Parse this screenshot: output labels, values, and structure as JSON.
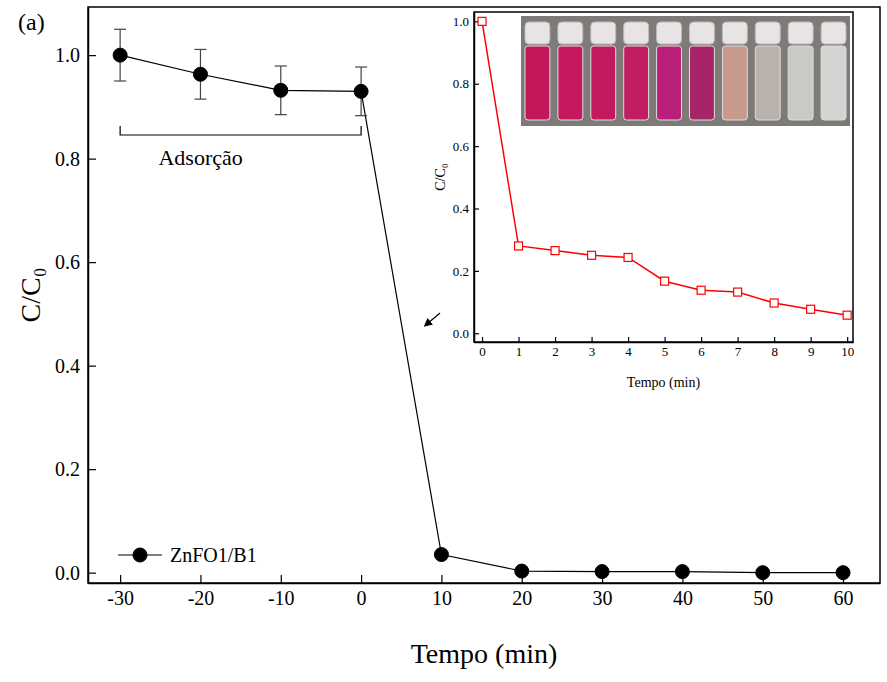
{
  "chart_data": [
    {
      "type": "line",
      "panel_label": "(a)",
      "x_label": "Tempo (min)",
      "y_label": "C/C₀",
      "x": [
        -30,
        -20,
        -10,
        0,
        10,
        20,
        30,
        40,
        50,
        60
      ],
      "series": [
        {
          "name": "ZnFO1/B1",
          "color": "#000000",
          "marker": "circle",
          "values": [
            1.0,
            0.963,
            0.932,
            0.93,
            0.035,
            0.003,
            0.002,
            0.002,
            0.0,
            0.0
          ],
          "errors": [
            0.05,
            0.048,
            0.047,
            0.047,
            null,
            null,
            null,
            null,
            null,
            null
          ]
        }
      ],
      "xlim": [
        -34,
        64.6
      ],
      "ylim": [
        -0.02,
        1.093
      ],
      "xticks": [
        -30,
        -20,
        -10,
        0,
        10,
        20,
        30,
        40,
        50,
        60
      ],
      "yticks": [
        {
          "value": 0,
          "label": "0.0"
        },
        {
          "value": 0.2,
          "label": "0.2"
        },
        {
          "value": 0.4,
          "label": "0.4"
        },
        {
          "value": 0.6,
          "label": "0.6"
        },
        {
          "value": 0.8,
          "label": "0.8"
        },
        {
          "value": 1,
          "label": "1.0"
        }
      ],
      "legend": "lower left",
      "annotations": [
        {
          "text": "Adsorção",
          "x": [
            -30,
            0
          ]
        }
      ]
    },
    {
      "type": "line",
      "x_label": "Tempo (min)",
      "y_label": "C/C₀",
      "x": [
        0,
        1,
        2,
        3,
        4,
        5,
        6,
        7,
        8,
        9,
        10
      ],
      "series": [
        {
          "color": "#ff0000",
          "marker": "square",
          "values": [
            1.0,
            0.28,
            0.265,
            0.25,
            0.243,
            0.167,
            0.138,
            0.132,
            0.097,
            0.077,
            0.058
          ]
        }
      ],
      "xlim": [
        -0.22,
        10.16
      ],
      "ylim": [
        -0.028,
        1.03
      ],
      "xticks": [
        0,
        1,
        2,
        3,
        4,
        5,
        6,
        7,
        8,
        9,
        10
      ],
      "yticks": [
        {
          "value": 0,
          "label": "0.0"
        },
        {
          "value": 0.2,
          "label": "0.2"
        },
        {
          "value": 0.4,
          "label": "0.4"
        },
        {
          "value": 0.6,
          "label": "0.6"
        },
        {
          "value": 0.8,
          "label": "0.8"
        },
        {
          "value": 1,
          "label": "1.0"
        }
      ]
    }
  ]
}
